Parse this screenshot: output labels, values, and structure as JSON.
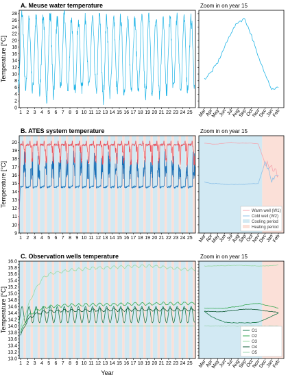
{
  "xlabel": "Year",
  "chart_data": [
    {
      "id": "A",
      "type": "line",
      "title": "A. Meuse water temperature",
      "ylabel": "Temperature [°C]",
      "xlim": [
        0.8,
        25.8
      ],
      "ylim": [
        0,
        29
      ],
      "yticks": [
        0,
        2,
        4,
        6,
        8,
        10,
        12,
        14,
        16,
        18,
        20,
        22,
        24,
        26,
        28
      ],
      "xticks": [
        1,
        2,
        3,
        4,
        5,
        6,
        7,
        8,
        9,
        10,
        11,
        12,
        13,
        14,
        15,
        16,
        17,
        18,
        19,
        20,
        21,
        22,
        23,
        24,
        25
      ],
      "series": [
        {
          "color": "#1fb4e6",
          "min": [
            6.5,
            4.5,
            5.5,
            4.0,
            3.0,
            6.0,
            6.0,
            4.5,
            5.0,
            5.5,
            6.0,
            4.0,
            2.0,
            5.0,
            4.0,
            5.5,
            6.0,
            4.5,
            2.0,
            5.5,
            4.0,
            5.0,
            6.0,
            5.0,
            6.0
          ],
          "max": [
            28.0,
            26.0,
            26.5,
            27.5,
            28.0,
            26.0,
            27.5,
            26.5,
            25.5,
            26.5,
            26.0,
            27.0,
            26.5,
            26.5,
            26.5,
            25.5,
            26.0,
            26.5,
            27.0,
            27.0,
            26.5,
            26.5,
            26.5,
            26.0,
            26.5
          ]
        }
      ]
    },
    {
      "id": "A-zoom",
      "type": "line",
      "title": "Zoom in on year 15",
      "xticks": [
        "Mar",
        "Apr",
        "May",
        "Jun",
        "Jul",
        "Aug",
        "Sep",
        "Oct",
        "Nov",
        "Dec",
        "Jan",
        "Feb"
      ],
      "ylim": [
        0,
        29
      ],
      "series": [
        {
          "color": "#1fb4e6",
          "values": [
            8.5,
            10.5,
            13.5,
            18.0,
            22.5,
            25.5,
            26.5,
            21.5,
            15.0,
            10.5,
            5.5,
            6.0
          ]
        }
      ]
    },
    {
      "id": "B",
      "type": "line",
      "title": "B. ATES system temperature",
      "ylabel": "Temperature [°C]",
      "xlim": [
        0.8,
        25.8
      ],
      "ylim": [
        9,
        20.8
      ],
      "yticks": [
        9,
        10,
        11,
        12,
        13,
        14,
        15,
        16,
        17,
        18,
        19,
        20
      ],
      "xticks": [
        1,
        2,
        3,
        4,
        5,
        6,
        7,
        8,
        9,
        10,
        11,
        12,
        13,
        14,
        15,
        16,
        17,
        18,
        19,
        20,
        21,
        22,
        23,
        24,
        25
      ],
      "periods": {
        "cooling_color": "#d2e9f3",
        "heating_color": "#fbe0d8"
      },
      "series": [
        {
          "name": "Warm well (W1)",
          "color": "#e8505b",
          "base": 19.7,
          "peak": 20.0,
          "floor_start": 9.5
        },
        {
          "name": "Cold well (W2)",
          "color": "#1870b8",
          "base": 14.5,
          "peak": 19.0
        }
      ]
    },
    {
      "id": "B-zoom",
      "type": "line",
      "title": "Zoom in on year 15",
      "xticks": [
        "Mar",
        "Apr",
        "May",
        "Jun",
        "Jul",
        "Aug",
        "Sep",
        "Oct",
        "Nov",
        "Dec",
        "Jan",
        "Feb"
      ],
      "ylim": [
        9,
        20.8
      ],
      "legend": {
        "position": "bottom-right",
        "entries": [
          {
            "label": "Warm well (W1)",
            "kind": "line",
            "color": "#f4a6b0"
          },
          {
            "label": "Cold well (W2)",
            "kind": "line",
            "color": "#8cc0e8"
          },
          {
            "label": "Cooling period",
            "kind": "patch",
            "color": "#d2e9f3"
          },
          {
            "label": "Heating period",
            "kind": "patch",
            "color": "#fbe0d8"
          }
        ]
      },
      "heating_start_month": "Dec",
      "series": [
        {
          "name": "Warm well (W1)",
          "color": "#f4a6b0",
          "values": [
            19.9,
            19.8,
            19.8,
            19.9,
            20.0,
            19.9,
            19.9,
            19.9,
            19.8,
            17.5,
            17.0,
            16.0
          ]
        },
        {
          "name": "Cold well (W2)",
          "color": "#8cc0e8",
          "values": [
            15.2,
            15.0,
            15.0,
            14.9,
            14.9,
            14.9,
            14.9,
            15.0,
            15.0,
            17.5,
            15.5,
            16.0
          ]
        }
      ]
    },
    {
      "id": "C",
      "type": "line",
      "title": "C. Observation wells temperature",
      "ylabel": "Temperature [°C]",
      "xlim": [
        0.8,
        25.8
      ],
      "ylim": [
        13.0,
        16.0
      ],
      "yticks": [
        13.0,
        13.1,
        13.2,
        13.3,
        13.4,
        13.5,
        13.6,
        13.7,
        13.8,
        13.9,
        14.0,
        14.1,
        14.2,
        14.3,
        14.4,
        14.5,
        14.6,
        14.7,
        14.8,
        14.9,
        15.0,
        15.1,
        15.2,
        15.3,
        15.4,
        15.5,
        15.6,
        15.7,
        15.8,
        15.9,
        16.0
      ],
      "ytick_labels": [
        "13.0",
        "13.2",
        "13.4",
        "13.6",
        "13.8",
        "14.0",
        "14.2",
        "14.4",
        "14.6",
        "14.8",
        "15.0",
        "15.2",
        "15.4",
        "15.6",
        "15.8",
        "16.0"
      ],
      "xticks": [
        1,
        2,
        3,
        4,
        5,
        6,
        7,
        8,
        9,
        10,
        11,
        12,
        13,
        14,
        15,
        16,
        17,
        18,
        19,
        20,
        21,
        22,
        23,
        24,
        25
      ],
      "series": [
        {
          "name": "O1",
          "color": "#1a7a4c",
          "min": 14.1,
          "max": 14.6
        },
        {
          "name": "O2",
          "color": "#33a84f",
          "values": [
            13.8,
            14.3,
            14.45,
            14.55,
            14.6,
            14.62,
            14.63,
            14.64,
            14.65,
            14.65,
            14.66,
            14.66,
            14.67,
            14.67,
            14.67,
            14.68,
            14.68,
            14.68,
            14.68,
            14.69,
            14.69,
            14.69,
            14.69,
            14.7,
            14.7
          ]
        },
        {
          "name": "O3",
          "color": "#9ad8a3",
          "values": [
            13.9,
            14.6,
            15.1,
            15.45,
            15.6,
            15.65,
            15.68,
            15.72,
            15.74,
            15.76,
            15.78,
            15.8,
            15.8,
            15.82,
            15.82,
            15.83,
            15.85,
            15.85,
            15.85,
            15.85,
            15.82,
            15.8,
            15.78,
            15.76,
            15.75
          ]
        },
        {
          "name": "O4",
          "color": "#0e5a34",
          "values": [
            13.7,
            14.2,
            14.35,
            14.42,
            14.45,
            14.46,
            14.47,
            14.48,
            14.48,
            14.48,
            14.49,
            14.49,
            14.49,
            14.5,
            14.5,
            14.5,
            14.5,
            14.5,
            14.5,
            14.5,
            14.5,
            14.5,
            14.5,
            14.5,
            14.5
          ]
        },
        {
          "name": "O5",
          "color": "#9bd4b0",
          "constant": 14.0
        }
      ]
    },
    {
      "id": "C-zoom",
      "type": "line",
      "title": "Zoom in on year 15",
      "xticks": [
        "Mar",
        "Apr",
        "May",
        "Jun",
        "Jul",
        "Aug",
        "Sep",
        "Oct",
        "Nov",
        "Dec",
        "Jan",
        "Feb"
      ],
      "ylim": [
        13.0,
        16.0
      ],
      "legend": {
        "position": "bottom-right",
        "entries": [
          {
            "label": "O1",
            "color": "#1a7a4c"
          },
          {
            "label": "O2",
            "color": "#33a84f"
          },
          {
            "label": "O3",
            "color": "#9ad8a3"
          },
          {
            "label": "O4",
            "color": "#0e5a34"
          },
          {
            "label": "O5",
            "color": "#9bd4b0"
          }
        ]
      },
      "heating_start_month": "Dec",
      "series": [
        {
          "name": "O1",
          "color": "#1a7a4c",
          "values": [
            14.45,
            14.3,
            14.2,
            14.12,
            14.1,
            14.1,
            14.1,
            14.1,
            14.12,
            14.2,
            14.3,
            14.4
          ]
        },
        {
          "name": "O2",
          "color": "#33a84f",
          "values": [
            14.55,
            14.55,
            14.55,
            14.55,
            14.58,
            14.6,
            14.65,
            14.68,
            14.7,
            14.65,
            14.6,
            14.55
          ]
        },
        {
          "name": "O3",
          "color": "#9ad8a3",
          "values": [
            15.85,
            15.85,
            15.86,
            15.86,
            15.87,
            15.87,
            15.87,
            15.86,
            15.85,
            15.85,
            15.86,
            15.88
          ]
        },
        {
          "name": "O4",
          "color": "#0e5a34",
          "values": [
            14.45,
            14.45,
            14.44,
            14.45,
            14.48,
            14.5,
            14.52,
            14.52,
            14.5,
            14.47,
            14.45,
            14.42
          ]
        },
        {
          "name": "O5",
          "color": "#9bd4b0",
          "values": [
            14.0,
            14.0,
            14.0,
            14.0,
            14.0,
            14.0,
            14.0,
            14.0,
            14.0,
            14.0,
            14.0,
            14.0
          ]
        }
      ]
    }
  ]
}
